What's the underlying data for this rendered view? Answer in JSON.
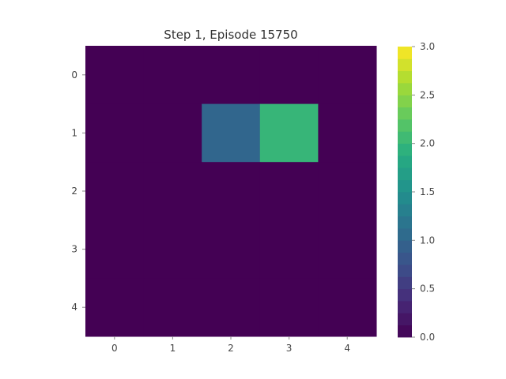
{
  "title": "Step 1, Episode 15750",
  "chart_data": {
    "type": "heatmap",
    "title": "Step 1, Episode 15750",
    "rows": [
      0,
      1,
      2,
      3,
      4
    ],
    "cols": [
      0,
      1,
      2,
      3,
      4
    ],
    "x_tick_labels": [
      "0",
      "1",
      "2",
      "3",
      "4"
    ],
    "y_tick_labels": [
      "0",
      "1",
      "2",
      "3",
      "4"
    ],
    "values": [
      [
        0,
        0,
        0,
        0,
        0
      ],
      [
        0,
        0,
        1,
        2,
        0
      ],
      [
        0,
        0,
        0,
        0,
        0
      ],
      [
        0,
        0,
        0,
        0,
        0
      ],
      [
        0,
        0,
        0,
        0,
        0
      ]
    ],
    "colormap": "viridis",
    "vmin": 0.0,
    "vmax": 3.0,
    "colorbar": {
      "levels": 24,
      "tick_values": [
        0.0,
        0.5,
        1.0,
        1.5,
        2.0,
        2.5,
        3.0
      ],
      "tick_labels": [
        "0.0",
        "0.5",
        "1.0",
        "1.5",
        "2.0",
        "2.5",
        "3.0"
      ]
    },
    "grid": false
  }
}
